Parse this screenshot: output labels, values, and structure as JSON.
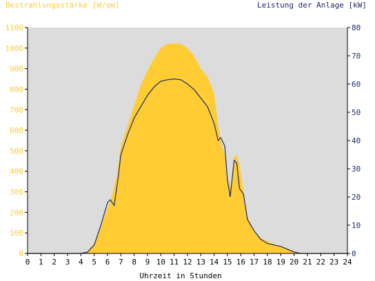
{
  "chart_data": {
    "type": "area",
    "left_axis_title": "Bestrahlungsstärke [W/qm]",
    "right_axis_title": "Leistung der Anlage [kW]",
    "xlabel": "Uhrzeit in Stunden",
    "xlim": [
      0,
      24
    ],
    "x_ticks": [
      "0",
      "1",
      "2",
      "3",
      "4",
      "5",
      "6",
      "7",
      "8",
      "9",
      "10",
      "11",
      "12",
      "13",
      "14",
      "15",
      "16",
      "17",
      "18",
      "19",
      "20",
      "21",
      "22",
      "23",
      "24"
    ],
    "left_ylim": [
      0,
      1100
    ],
    "left_ticks": [
      "0",
      "100",
      "200",
      "300",
      "400",
      "500",
      "600",
      "700",
      "800",
      "900",
      "1000",
      "1100"
    ],
    "right_ylim": [
      0,
      80
    ],
    "right_ticks": [
      "0",
      "10",
      "20",
      "30",
      "40",
      "50",
      "60",
      "70",
      "80"
    ],
    "grid": false,
    "colors": {
      "plot_bg": "#dcdcdc",
      "irradiance": "#ffcc33",
      "power": "#1a2a6c",
      "left_axis_text": "#ffcc33",
      "right_axis_text": "#1a2a6c"
    },
    "series": [
      {
        "axis": "left",
        "color": "#ffcc33",
        "x": [
          0,
          4.0,
          4.5,
          5.0,
          5.5,
          6.0,
          6.3,
          6.7,
          7.0,
          7.5,
          8.0,
          8.5,
          9.0,
          9.5,
          10.0,
          10.5,
          11.0,
          11.5,
          12.0,
          12.5,
          13.0,
          13.5,
          14.0,
          14.3,
          14.6,
          14.9,
          15.0,
          15.3,
          15.5,
          15.7,
          15.9,
          16.2,
          16.5,
          17.0,
          17.5,
          18.0,
          18.5,
          19.0,
          19.5,
          20.0,
          20.5,
          21.0,
          24
        ],
        "y": [
          0,
          0,
          8,
          50,
          130,
          220,
          270,
          380,
          520,
          620,
          720,
          820,
          890,
          950,
          1000,
          1020,
          1022,
          1020,
          1000,
          960,
          900,
          860,
          780,
          620,
          520,
          460,
          360,
          320,
          470,
          480,
          430,
          300,
          180,
          110,
          75,
          60,
          45,
          35,
          25,
          10,
          3,
          0,
          0
        ]
      },
      {
        "axis": "right",
        "color": "#1a2a6c",
        "x": [
          0,
          4.0,
          4.5,
          5.0,
          5.5,
          6.0,
          6.2,
          6.5,
          6.8,
          7.0,
          7.5,
          8.0,
          8.5,
          9.0,
          9.5,
          10.0,
          10.5,
          11.0,
          11.5,
          12.0,
          12.5,
          13.0,
          13.5,
          14.0,
          14.3,
          14.5,
          14.8,
          15.0,
          15.2,
          15.5,
          15.7,
          15.9,
          16.2,
          16.5,
          17.0,
          17.5,
          18.0,
          18.5,
          19.0,
          19.5,
          20.0,
          20.5,
          21.0,
          24
        ],
        "y": [
          0,
          0,
          0.5,
          3,
          10,
          18,
          19,
          17,
          27,
          35,
          42,
          48,
          52,
          56,
          59,
          61,
          61.5,
          61.8,
          61.5,
          60,
          58,
          55,
          52,
          46,
          40,
          41,
          38,
          26,
          20,
          33,
          32,
          23,
          21,
          12,
          8,
          5,
          3.5,
          3,
          2.5,
          1.5,
          0.5,
          0,
          0,
          0
        ]
      }
    ]
  }
}
